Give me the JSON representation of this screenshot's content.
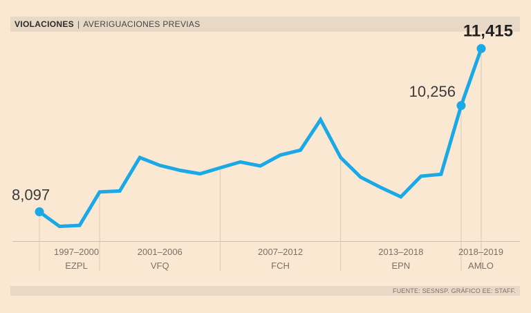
{
  "header": {
    "title": "VIOLACIONES",
    "separator": "|",
    "subtitle": "AVERIGUACIONES PREVIAS"
  },
  "footer": {
    "source": "FUENTE: SESNSP. GRÁFICO EE: STAFF."
  },
  "colors": {
    "line": "#1aa9e6",
    "background": "#fbe8d2",
    "bar": "#e8d8c6"
  },
  "chart_data": {
    "type": "line",
    "title": "VIOLACIONES | AVERIGUACIONES PREVIAS",
    "x": [
      1997,
      1998,
      1999,
      2000,
      2001,
      2002,
      2003,
      2004,
      2005,
      2006,
      2007,
      2008,
      2009,
      2010,
      2011,
      2012,
      2013,
      2014,
      2015,
      2016,
      2017,
      2018,
      2019
    ],
    "values": [
      8097,
      7800,
      7820,
      8500,
      8520,
      9200,
      9040,
      8940,
      8870,
      8990,
      9110,
      9030,
      9250,
      9350,
      9970,
      9200,
      8800,
      8590,
      8400,
      8820,
      8860,
      10256,
      11415
    ],
    "ylim": [
      7500,
      11700
    ],
    "labeled_points": [
      {
        "index": 0,
        "label": "8,097",
        "bold": false
      },
      {
        "index": 21,
        "label": "10,256",
        "bold": false
      },
      {
        "index": 22,
        "label": "11,415",
        "bold": true
      }
    ],
    "periods": [
      {
        "years": "1997–2000",
        "name": "EZPL",
        "start": 1997,
        "end": 2000
      },
      {
        "years": "2001–2006",
        "name": "VFQ",
        "start": 2000,
        "end": 2006
      },
      {
        "years": "2007–2012",
        "name": "FCH",
        "start": 2006,
        "end": 2012
      },
      {
        "years": "2013–2018",
        "name": "EPN",
        "start": 2012,
        "end": 2018
      },
      {
        "years": "2018–2019",
        "name": "AMLO",
        "start": 2018,
        "end": 2019
      }
    ]
  }
}
